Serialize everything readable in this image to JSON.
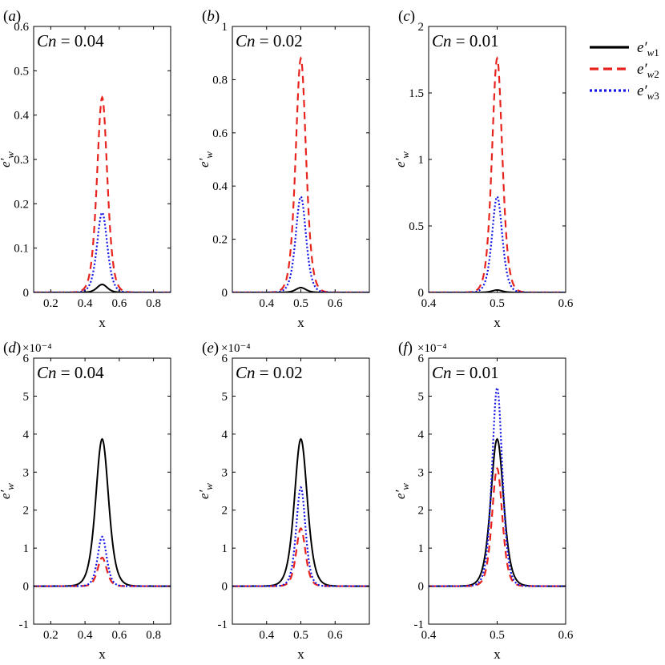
{
  "figure": {
    "legend": {
      "position": "right of top row",
      "entries": [
        {
          "base": "e",
          "prime": "′",
          "sub": "w1",
          "color": "#000000",
          "style": "solid"
        },
        {
          "base": "e",
          "prime": "′",
          "sub": "w2",
          "color": "#e8231e",
          "style": "dashed"
        },
        {
          "base": "e",
          "prime": "′",
          "sub": "w3",
          "color": "#1414e6",
          "style": "dotted"
        }
      ]
    }
  },
  "chart_data": [
    {
      "panel": "(a)",
      "type": "line",
      "annotation": "Cn = 0.04",
      "xlabel": "x",
      "ylabel": "e′w",
      "xlim": [
        0.1,
        0.9
      ],
      "ylim": [
        0,
        0.6
      ],
      "xticks": [
        0.2,
        0.4,
        0.6,
        0.8
      ],
      "xtick_labels": [
        "0.2",
        "0.4",
        "0.6",
        "0.8"
      ],
      "yticks": [
        0,
        0.1,
        0.2,
        0.3,
        0.4,
        0.5,
        0.6
      ],
      "ytick_labels": [
        "0",
        "0.1",
        "0.2",
        "0.3",
        "0.4",
        "0.5",
        "0.6"
      ],
      "exponent_label": "",
      "series": [
        {
          "name": "e′w1",
          "style": "solid",
          "color": "#000000",
          "peak": 0.018,
          "center": 0.5,
          "width": 0.04
        },
        {
          "name": "e′w2",
          "style": "dashed",
          "color": "#e8231e",
          "peak": 0.44,
          "center": 0.5,
          "width": 0.04
        },
        {
          "name": "e′w3",
          "style": "dotted",
          "color": "#1414e6",
          "peak": 0.18,
          "center": 0.5,
          "width": 0.04
        }
      ]
    },
    {
      "panel": "(b)",
      "type": "line",
      "annotation": "Cn = 0.02",
      "xlabel": "x",
      "ylabel": "e′w",
      "xlim": [
        0.3,
        0.7
      ],
      "ylim": [
        0,
        1
      ],
      "xticks": [
        0.4,
        0.5,
        0.6
      ],
      "xtick_labels": [
        "0.4",
        "0.5",
        "0.6"
      ],
      "yticks": [
        0,
        0.2,
        0.4,
        0.6,
        0.8,
        1
      ],
      "ytick_labels": [
        "0",
        "0.2",
        "0.4",
        "0.6",
        "0.8",
        "1"
      ],
      "exponent_label": "",
      "series": [
        {
          "name": "e′w1",
          "style": "solid",
          "color": "#000000",
          "peak": 0.018,
          "center": 0.5,
          "width": 0.02
        },
        {
          "name": "e′w2",
          "style": "dashed",
          "color": "#e8231e",
          "peak": 0.88,
          "center": 0.5,
          "width": 0.02
        },
        {
          "name": "e′w3",
          "style": "dotted",
          "color": "#1414e6",
          "peak": 0.36,
          "center": 0.5,
          "width": 0.02
        }
      ]
    },
    {
      "panel": "(c)",
      "type": "line",
      "annotation": "Cn = 0.01",
      "xlabel": "x",
      "ylabel": "e′w",
      "xlim": [
        0.4,
        0.6
      ],
      "ylim": [
        0,
        2
      ],
      "xticks": [
        0.4,
        0.5,
        0.6
      ],
      "xtick_labels": [
        "0.4",
        "0.5",
        "0.6"
      ],
      "yticks": [
        0,
        0.5,
        1,
        1.5,
        2
      ],
      "ytick_labels": [
        "0",
        "0.5",
        "1",
        "1.5",
        "2"
      ],
      "exponent_label": "",
      "series": [
        {
          "name": "e′w1",
          "style": "solid",
          "color": "#000000",
          "peak": 0.018,
          "center": 0.5,
          "width": 0.01
        },
        {
          "name": "e′w2",
          "style": "dashed",
          "color": "#e8231e",
          "peak": 1.76,
          "center": 0.5,
          "width": 0.01
        },
        {
          "name": "e′w3",
          "style": "dotted",
          "color": "#1414e6",
          "peak": 0.72,
          "center": 0.5,
          "width": 0.01
        }
      ]
    },
    {
      "panel": "(d)",
      "type": "line",
      "annotation": "Cn = 0.04",
      "xlabel": "x",
      "ylabel": "e′w",
      "xlim": [
        0.1,
        0.9
      ],
      "ylim": [
        -1,
        6
      ],
      "xticks": [
        0.2,
        0.4,
        0.6,
        0.8
      ],
      "xtick_labels": [
        "0.2",
        "0.4",
        "0.6",
        "0.8"
      ],
      "yticks": [
        -1,
        0,
        1,
        2,
        3,
        4,
        5,
        6
      ],
      "ytick_labels": [
        "-1",
        "0",
        "1",
        "2",
        "3",
        "4",
        "5",
        "6"
      ],
      "exponent_label": "×10⁻⁴",
      "series": [
        {
          "name": "e′w1",
          "style": "solid",
          "color": "#000000",
          "peak": 3.87,
          "center": 0.5,
          "width": 0.05
        },
        {
          "name": "e′w2",
          "style": "dashed",
          "color": "#e8231e",
          "peak": 0.75,
          "center": 0.5,
          "width": 0.035
        },
        {
          "name": "e′w3",
          "style": "dotted",
          "color": "#1414e6",
          "peak": 1.3,
          "center": 0.5,
          "width": 0.035
        }
      ]
    },
    {
      "panel": "(e)",
      "type": "line",
      "annotation": "Cn = 0.02",
      "xlabel": "x",
      "ylabel": "e′w",
      "xlim": [
        0.3,
        0.7
      ],
      "ylim": [
        -1,
        6
      ],
      "xticks": [
        0.4,
        0.5,
        0.6
      ],
      "xtick_labels": [
        "0.4",
        "0.5",
        "0.6"
      ],
      "yticks": [
        -1,
        0,
        1,
        2,
        3,
        4,
        5,
        6
      ],
      "ytick_labels": [
        "-1",
        "0",
        "1",
        "2",
        "3",
        "4",
        "5",
        "6"
      ],
      "exponent_label": "×10⁻⁴",
      "series": [
        {
          "name": "e′w1",
          "style": "solid",
          "color": "#000000",
          "peak": 3.87,
          "center": 0.5,
          "width": 0.025
        },
        {
          "name": "e′w2",
          "style": "dashed",
          "color": "#e8231e",
          "peak": 1.52,
          "center": 0.5,
          "width": 0.018
        },
        {
          "name": "e′w3",
          "style": "dotted",
          "color": "#1414e6",
          "peak": 2.6,
          "center": 0.5,
          "width": 0.018
        }
      ]
    },
    {
      "panel": "(f)",
      "type": "line",
      "annotation": "Cn = 0.01",
      "xlabel": "x",
      "ylabel": "e′w",
      "xlim": [
        0.4,
        0.6
      ],
      "ylim": [
        -1,
        6
      ],
      "xticks": [
        0.4,
        0.5,
        0.6
      ],
      "xtick_labels": [
        "0.4",
        "0.5",
        "0.6"
      ],
      "yticks": [
        -1,
        0,
        1,
        2,
        3,
        4,
        5,
        6
      ],
      "ytick_labels": [
        "-1",
        "0",
        "1",
        "2",
        "3",
        "4",
        "5",
        "6"
      ],
      "exponent_label": "×10⁻⁴",
      "series": [
        {
          "name": "e′w1",
          "style": "solid",
          "color": "#000000",
          "peak": 3.87,
          "center": 0.5,
          "width": 0.0125
        },
        {
          "name": "e′w2",
          "style": "dashed",
          "color": "#e8231e",
          "peak": 3.1,
          "center": 0.5,
          "width": 0.01
        },
        {
          "name": "e′w3",
          "style": "dotted",
          "color": "#1414e6",
          "peak": 5.22,
          "center": 0.5,
          "width": 0.01
        }
      ]
    }
  ]
}
